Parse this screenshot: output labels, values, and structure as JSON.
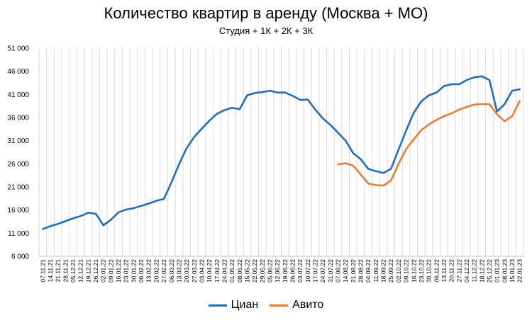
{
  "chart_data": {
    "type": "line",
    "title": "Количество квартир в аренду (Москва + МО)",
    "subtitle": "Студия + 1К + 2К + 3К",
    "xlabel": "",
    "ylabel": "",
    "ylim": [
      6000,
      51000
    ],
    "yticks": [
      6000,
      11000,
      16000,
      21000,
      26000,
      31000,
      36000,
      41000,
      46000,
      51000
    ],
    "ytick_labels": [
      "6 000",
      "11 000",
      "16 000",
      "21 000",
      "26 000",
      "31 000",
      "36 000",
      "41 000",
      "46 000",
      "51 000"
    ],
    "grid": "vertical",
    "legend": "bottom",
    "categories": [
      "07.11.21",
      "14.11.21",
      "21.11.21",
      "28.11.21",
      "05.12.21",
      "12.12.21",
      "19.12.21",
      "26.12.21",
      "02.01.22",
      "09.01.22",
      "16.01.22",
      "23.01.22",
      "30.01.22",
      "06.02.22",
      "13.02.22",
      "20.02.22",
      "27.02.22",
      "06.03.22",
      "13.03.22",
      "20.03.22",
      "27.03.22",
      "03.04.22",
      "10.04.22",
      "17.04.22",
      "24.04.22",
      "01.05.22",
      "08.05.22",
      "15.05.22",
      "22.05.22",
      "29.05.22",
      "05.06.22",
      "12.06.22",
      "19.06.22",
      "26.06.22",
      "03.07.22",
      "10.07.22",
      "17.07.22",
      "24.07.22",
      "31.07.22",
      "07.08.22",
      "14.08.22",
      "21.08.22",
      "28.08.22",
      "04.09.22",
      "11.09.22",
      "18.09.22",
      "25.09.22",
      "02.10.22",
      "09.10.22",
      "16.10.22",
      "23.10.22",
      "30.10.22",
      "06.11.22",
      "13.11.22",
      "20.11.22",
      "27.11.22",
      "04.12.22",
      "11.12.22",
      "18.12.22",
      "25.12.22",
      "01.01.23",
      "08.01.23",
      "15.01.23",
      "22.01.23"
    ],
    "series": [
      {
        "name": "Циан",
        "color": "#1f6fbf",
        "values": [
          11900,
          12500,
          13000,
          13600,
          14200,
          14700,
          15400,
          15200,
          12700,
          13900,
          15500,
          16100,
          16400,
          16900,
          17400,
          18000,
          18400,
          22000,
          25900,
          29400,
          31800,
          33600,
          35300,
          36800,
          37600,
          38100,
          37800,
          40800,
          41300,
          41500,
          41800,
          41400,
          41400,
          40700,
          39800,
          39900,
          37700,
          35800,
          34400,
          32700,
          31000,
          28300,
          27000,
          24900,
          24400,
          24000,
          24900,
          29100,
          33200,
          37000,
          39500,
          40800,
          41400,
          42800,
          43200,
          43200,
          44100,
          44700,
          44900,
          44100,
          37300,
          38900,
          41800,
          42100
        ]
      },
      {
        "name": "Авито",
        "color": "#ed7d31",
        "values": [
          null,
          null,
          null,
          null,
          null,
          null,
          null,
          null,
          null,
          null,
          null,
          null,
          null,
          null,
          null,
          null,
          null,
          null,
          null,
          null,
          null,
          null,
          null,
          null,
          null,
          null,
          null,
          null,
          null,
          null,
          null,
          null,
          null,
          null,
          null,
          null,
          null,
          null,
          null,
          25900,
          26100,
          25600,
          23700,
          21700,
          21400,
          21300,
          22400,
          26000,
          29200,
          31300,
          33300,
          34500,
          35500,
          36300,
          36900,
          37700,
          38300,
          38800,
          38900,
          38900,
          36700,
          35200,
          36300,
          39600
        ]
      }
    ]
  }
}
